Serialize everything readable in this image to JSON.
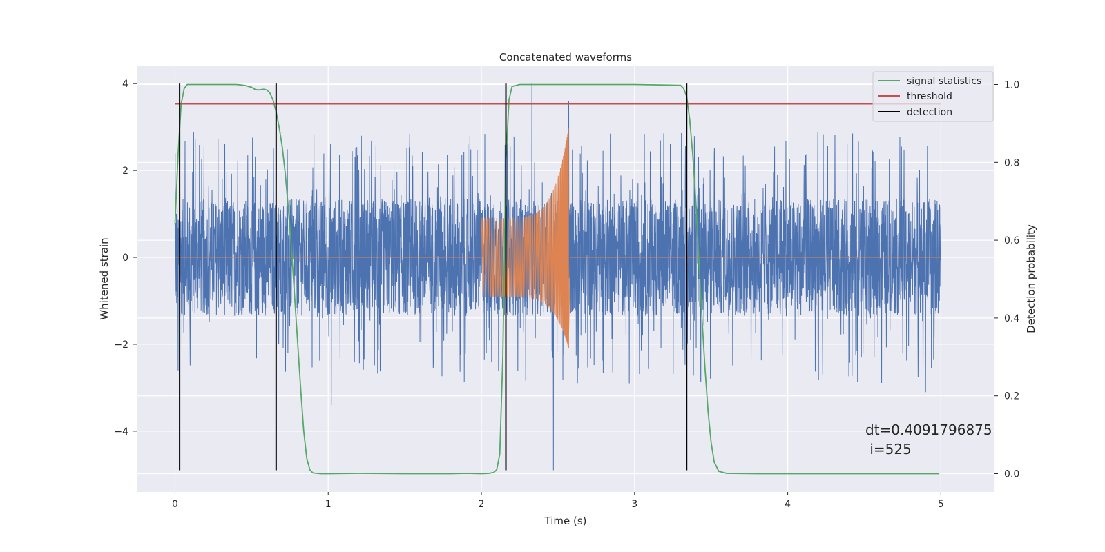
{
  "chart_data": {
    "type": "line",
    "title": "Concatenated waveforms",
    "xlabel": "Time (s)",
    "ylabel": "Whitened strain",
    "y2label": "Detection probability",
    "xlim": [
      -0.25,
      5.35
    ],
    "ylim": [
      -5.4,
      4.4
    ],
    "y2lim": [
      -0.047,
      1.047
    ],
    "xticks": [
      0,
      1,
      2,
      3,
      4,
      5
    ],
    "yticks": [
      -4,
      -2,
      0,
      2,
      4
    ],
    "y2ticks": [
      0.0,
      0.2,
      0.4,
      0.6,
      0.8,
      1.0
    ],
    "grid": true,
    "legend_position": "top-right",
    "annotation": {
      "line1": "dt=0.4091796875",
      "line2": " i=525",
      "x": 4.5,
      "y": 0.1
    },
    "colors": {
      "background": "#eaeaf2",
      "noise": "#4c72b0",
      "injection": "#dd8452",
      "signal_statistics": "#55a868",
      "threshold": "#c44e52",
      "detection": "#000000"
    },
    "series": [
      {
        "name": "signal statistics",
        "axis": "right",
        "x": [
          0.0,
          0.02,
          0.04,
          0.06,
          0.08,
          0.1,
          0.15,
          0.2,
          0.3,
          0.4,
          0.45,
          0.5,
          0.52,
          0.54,
          0.56,
          0.58,
          0.6,
          0.62,
          0.64,
          0.66,
          0.68,
          0.7,
          0.72,
          0.74,
          0.76,
          0.78,
          0.8,
          0.82,
          0.84,
          0.86,
          0.88,
          0.9,
          0.95,
          1.0,
          1.2,
          1.5,
          1.8,
          1.9,
          2.0,
          2.05,
          2.08,
          2.1,
          2.12,
          2.14,
          2.16,
          2.18,
          2.2,
          2.25,
          2.3,
          2.5,
          3.0,
          3.3,
          3.32,
          3.34,
          3.36,
          3.38,
          3.4,
          3.42,
          3.44,
          3.46,
          3.48,
          3.5,
          3.52,
          3.55,
          3.6,
          3.8,
          4.0,
          4.5,
          4.99
        ],
        "y": [
          0.64,
          0.82,
          0.95,
          0.99,
          1.0,
          1.0,
          1.0,
          1.0,
          1.0,
          1.0,
          0.998,
          0.993,
          0.988,
          0.986,
          0.987,
          0.988,
          0.986,
          0.978,
          0.96,
          0.93,
          0.89,
          0.84,
          0.77,
          0.68,
          0.58,
          0.46,
          0.34,
          0.22,
          0.11,
          0.04,
          0.01,
          0.002,
          0.0,
          0.0,
          0.001,
          0.0,
          0.0,
          0.001,
          0.0,
          0.001,
          0.003,
          0.01,
          0.05,
          0.3,
          0.8,
          0.96,
          0.995,
          1.0,
          1.0,
          1.0,
          1.0,
          0.998,
          0.99,
          0.97,
          0.91,
          0.82,
          0.7,
          0.55,
          0.4,
          0.27,
          0.16,
          0.08,
          0.03,
          0.006,
          0.001,
          0.0,
          0.0,
          0.0,
          0.0
        ]
      },
      {
        "name": "threshold",
        "axis": "right",
        "x": [
          0.0,
          5.0
        ],
        "y": [
          0.95,
          0.95
        ]
      },
      {
        "name": "detection",
        "axis": "left",
        "type": "vlines",
        "x": [
          0.03,
          0.66,
          2.16,
          3.34
        ],
        "ymin": -4.9,
        "ymax": 4.0
      }
    ],
    "noise_trace": {
      "x_range": [
        0.0,
        5.0
      ],
      "core_amplitude": 1.35,
      "spike_typical_max": 2.9,
      "spike_extremes": [
        {
          "x": 0.02,
          "y": -2.6
        },
        {
          "x": 1.02,
          "y": -3.4
        },
        {
          "x": 2.33,
          "y": 4.0
        },
        {
          "x": 2.47,
          "y": -4.9
        },
        {
          "x": 2.57,
          "y": 3.6
        },
        {
          "x": 4.9,
          "y": -3.1
        }
      ]
    },
    "injection_trace": {
      "x_start": 2.0,
      "x_merger": 2.57,
      "x_end": 2.58,
      "start_amplitude": 0.9,
      "peak_positive": 3.0,
      "peak_negative": -2.1
    }
  }
}
